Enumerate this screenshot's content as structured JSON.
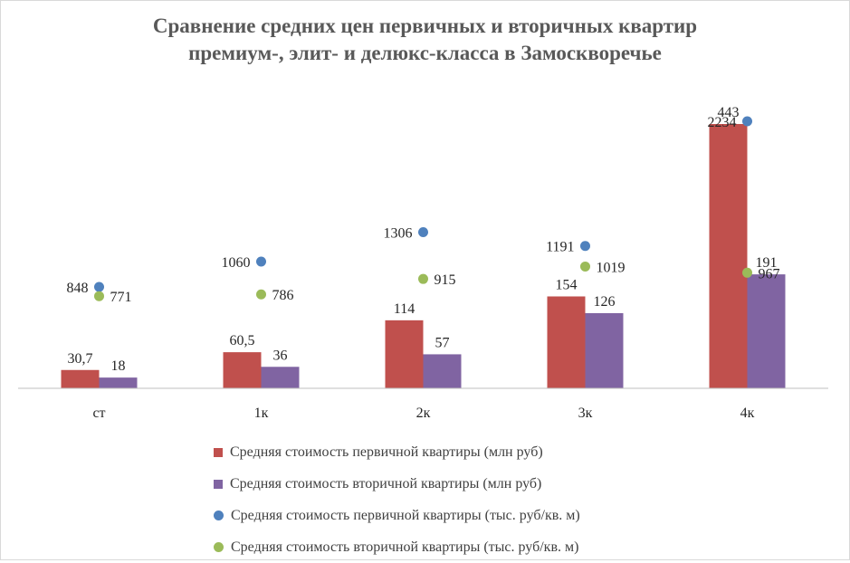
{
  "chart_data": {
    "type": "bar",
    "title_line1": "Сравнение средних цен первичных и вторичных квартир",
    "title_line2": "премиум-, элит- и делюкс-класса в Замоскворечье",
    "categories": [
      "ст",
      "1к",
      "2к",
      "3к",
      "4к"
    ],
    "bar_ylim": [
      0,
      443
    ],
    "dot_ylim": [
      0,
      2234
    ],
    "series": [
      {
        "name": "Средняя стоимость первичной квартиры (млн руб)",
        "kind": "bar",
        "color": "#c0504d",
        "values": [
          30.7,
          60.5,
          114,
          154,
          443
        ],
        "labels": [
          "30,7",
          "60,5",
          "114",
          "154",
          "443"
        ]
      },
      {
        "name": "Средняя стоимость вторичной квартиры (млн руб)",
        "kind": "bar",
        "color": "#8064a2",
        "values": [
          18,
          36,
          57,
          126,
          191
        ],
        "labels": [
          "18",
          "36",
          "57",
          "126",
          "191"
        ]
      },
      {
        "name": "Средняя стоимость первичной квартиры (тыс. руб/кв. м)",
        "kind": "dot",
        "color": "#4f81bd",
        "values": [
          848,
          1060,
          1306,
          1191,
          2234
        ],
        "labels": [
          "848",
          "1060",
          "1306",
          "1191",
          "2234"
        ]
      },
      {
        "name": "Средняя стоимость вторичной квартиры  (тыс. руб/кв. м)",
        "kind": "dot",
        "color": "#9bbb59",
        "values": [
          771,
          786,
          915,
          1019,
          967
        ],
        "labels": [
          "771",
          "786",
          "915",
          "1019",
          "967"
        ]
      }
    ]
  }
}
